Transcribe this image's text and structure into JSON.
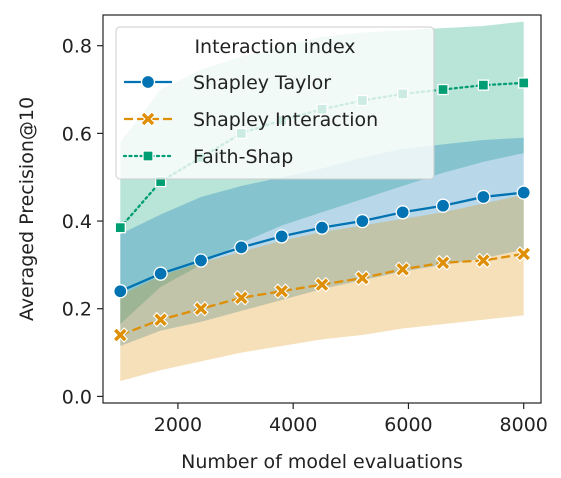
{
  "chart_data": {
    "type": "line",
    "xlabel": "Number of model evaluations",
    "ylabel": "Averaged Precision@10",
    "xlim": [
      700,
      8300
    ],
    "ylim": [
      -0.015,
      0.87
    ],
    "xticks": [
      2000,
      4000,
      6000,
      8000
    ],
    "xtick_labels": [
      "2000",
      "4000",
      "6000",
      "8000"
    ],
    "yticks": [
      0.0,
      0.2,
      0.4,
      0.6,
      0.8
    ],
    "ytick_labels": [
      "0.0",
      "0.2",
      "0.4",
      "0.6",
      "0.8"
    ],
    "grid": false,
    "legend": {
      "title": "Interaction index",
      "placement": "top-left"
    },
    "x": [
      1000,
      1700,
      2400,
      3100,
      3800,
      4500,
      5200,
      5900,
      6600,
      7300,
      8000
    ],
    "series": [
      {
        "name": "Faith-Shap",
        "color": "#029e73",
        "linestyle": "dotted",
        "marker": "square",
        "values": [
          0.385,
          0.49,
          0.545,
          0.6,
          0.63,
          0.655,
          0.675,
          0.69,
          0.7,
          0.71,
          0.715
        ],
        "band_lower": [
          0.165,
          0.25,
          0.3,
          0.35,
          0.39,
          0.42,
          0.45,
          0.48,
          0.51,
          0.535,
          0.555
        ],
        "band_upper": [
          0.58,
          0.7,
          0.745,
          0.775,
          0.8,
          0.82,
          0.83,
          0.835,
          0.84,
          0.845,
          0.855
        ]
      },
      {
        "name": "Shapley Taylor",
        "color": "#0173b2",
        "linestyle": "solid",
        "marker": "circle",
        "values": [
          0.24,
          0.28,
          0.31,
          0.34,
          0.365,
          0.385,
          0.4,
          0.42,
          0.435,
          0.455,
          0.465
        ],
        "band_lower": [
          0.115,
          0.15,
          0.17,
          0.195,
          0.22,
          0.245,
          0.265,
          0.285,
          0.3,
          0.315,
          0.335
        ],
        "band_upper": [
          0.37,
          0.415,
          0.455,
          0.48,
          0.5,
          0.52,
          0.545,
          0.565,
          0.575,
          0.585,
          0.59
        ]
      },
      {
        "name": "Shapley Interaction",
        "color": "#de8f05",
        "linestyle": "dashed",
        "marker": "x",
        "values": [
          0.14,
          0.175,
          0.2,
          0.225,
          0.24,
          0.255,
          0.27,
          0.29,
          0.305,
          0.31,
          0.325
        ],
        "band_lower": [
          0.035,
          0.06,
          0.08,
          0.1,
          0.115,
          0.13,
          0.14,
          0.155,
          0.165,
          0.175,
          0.185
        ],
        "band_upper": [
          0.23,
          0.275,
          0.305,
          0.33,
          0.355,
          0.375,
          0.39,
          0.405,
          0.42,
          0.44,
          0.46
        ]
      }
    ],
    "legend_order": [
      "Shapley Taylor",
      "Shapley Interaction",
      "Faith-Shap"
    ]
  }
}
